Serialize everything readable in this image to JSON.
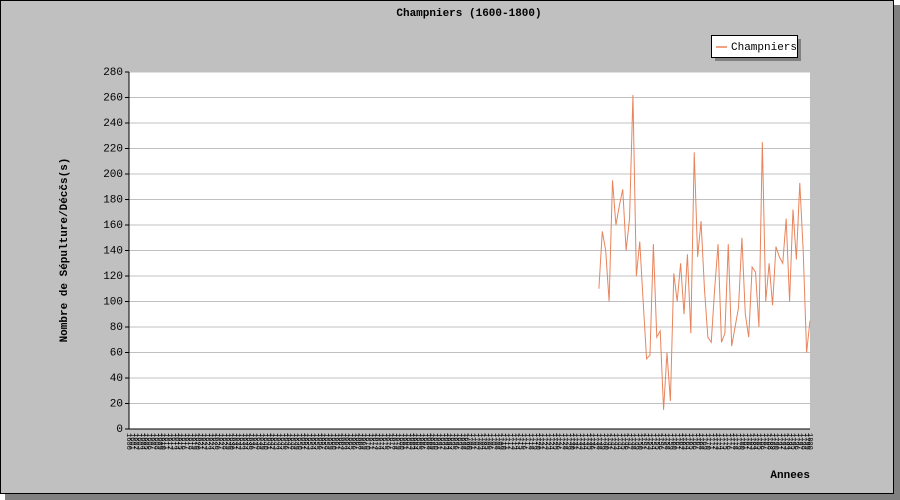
{
  "chart_data": {
    "type": "line",
    "title": "Champniers (1600-1800)",
    "xlabel": "Annees",
    "ylabel": "Nombre de Sépulture/Décčs(s)",
    "categories": [
      1600,
      1601,
      1602,
      1603,
      1604,
      1605,
      1606,
      1607,
      1608,
      1609,
      1610,
      1611,
      1612,
      1613,
      1614,
      1615,
      1616,
      1617,
      1618,
      1619,
      1620,
      1621,
      1622,
      1623,
      1624,
      1625,
      1626,
      1627,
      1628,
      1629,
      1630,
      1631,
      1632,
      1633,
      1634,
      1635,
      1636,
      1637,
      1638,
      1639,
      1640,
      1641,
      1642,
      1643,
      1644,
      1645,
      1646,
      1647,
      1648,
      1649,
      1650,
      1651,
      1652,
      1653,
      1654,
      1655,
      1656,
      1657,
      1658,
      1659,
      1660,
      1661,
      1662,
      1663,
      1664,
      1665,
      1666,
      1667,
      1668,
      1669,
      1670,
      1671,
      1672,
      1673,
      1674,
      1675,
      1676,
      1677,
      1678,
      1679,
      1680,
      1681,
      1682,
      1683,
      1684,
      1685,
      1686,
      1687,
      1688,
      1689,
      1690,
      1691,
      1692,
      1693,
      1694,
      1695,
      1696,
      1697,
      1698,
      1699,
      1700,
      1701,
      1702,
      1703,
      1704,
      1705,
      1706,
      1707,
      1708,
      1709,
      1710,
      1711,
      1712,
      1713,
      1714,
      1715,
      1716,
      1717,
      1718,
      1719,
      1720,
      1721,
      1722,
      1723,
      1724,
      1725,
      1726,
      1727,
      1728,
      1729,
      1730,
      1731,
      1732,
      1733,
      1734,
      1735,
      1736,
      1737,
      1738,
      1739,
      1740,
      1741,
      1742,
      1743,
      1744,
      1745,
      1746,
      1747,
      1748,
      1749,
      1750,
      1751,
      1752,
      1753,
      1754,
      1755,
      1756,
      1757,
      1758,
      1759,
      1760,
      1761,
      1762,
      1763,
      1764,
      1765,
      1766,
      1767,
      1768,
      1769,
      1770,
      1771,
      1772,
      1773,
      1774,
      1775,
      1776,
      1777,
      1778,
      1779,
      1780,
      1781,
      1782,
      1783,
      1784,
      1785,
      1786,
      1787,
      1788,
      1789,
      1790,
      1791,
      1792,
      1793,
      1794,
      1795,
      1796,
      1797,
      1798,
      1799,
      1800
    ],
    "series": [
      {
        "name": "Champniers",
        "color": "#e8845c",
        "values": [
          null,
          null,
          null,
          null,
          null,
          null,
          null,
          null,
          null,
          null,
          null,
          null,
          null,
          null,
          null,
          null,
          null,
          null,
          null,
          null,
          null,
          null,
          null,
          null,
          null,
          null,
          null,
          null,
          null,
          null,
          null,
          null,
          null,
          null,
          null,
          null,
          null,
          null,
          null,
          null,
          null,
          null,
          null,
          null,
          null,
          null,
          null,
          null,
          null,
          null,
          null,
          null,
          null,
          null,
          null,
          null,
          null,
          null,
          null,
          null,
          null,
          null,
          null,
          null,
          null,
          null,
          null,
          null,
          null,
          null,
          null,
          null,
          null,
          null,
          null,
          null,
          null,
          null,
          null,
          null,
          null,
          null,
          null,
          null,
          null,
          null,
          null,
          null,
          null,
          null,
          null,
          null,
          null,
          null,
          null,
          null,
          null,
          null,
          null,
          null,
          null,
          null,
          null,
          null,
          null,
          null,
          null,
          null,
          null,
          null,
          null,
          null,
          null,
          null,
          null,
          null,
          null,
          null,
          null,
          null,
          null,
          null,
          null,
          null,
          null,
          null,
          null,
          null,
          null,
          null,
          null,
          null,
          null,
          null,
          null,
          null,
          null,
          null,
          110,
          155,
          140,
          100,
          195,
          160,
          175,
          188,
          140,
          165,
          262,
          120,
          147,
          100,
          55,
          58,
          145,
          72,
          77,
          15,
          60,
          22,
          122,
          100,
          130,
          90,
          137,
          75,
          217,
          135,
          163,
          110,
          72,
          68,
          110,
          145,
          68,
          75,
          145,
          65,
          80,
          95,
          150,
          90,
          72,
          127,
          123,
          80,
          225,
          100,
          130,
          97,
          143,
          135,
          130,
          165,
          100,
          172,
          133,
          193,
          140,
          60,
          85
        ]
      }
    ],
    "ylim": [
      0,
      280
    ],
    "yticks": [
      0,
      20,
      40,
      60,
      80,
      100,
      120,
      140,
      160,
      180,
      200,
      220,
      240,
      260,
      280
    ],
    "grid": true,
    "legend": "top-right"
  }
}
